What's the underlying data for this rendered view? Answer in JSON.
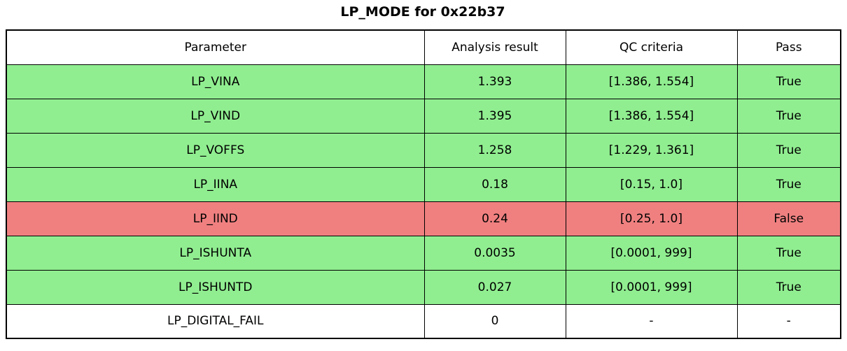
{
  "title": "LP_MODE for 0x22b37",
  "colors": {
    "pass": "#90EE90",
    "fail": "#F08080",
    "none": "#FFFFFF",
    "border": "#000000",
    "text": "#000000"
  },
  "table": {
    "columns": [
      "Parameter",
      "Analysis result",
      "QC criteria",
      "Pass"
    ],
    "rows": [
      {
        "parameter": "LP_VINA",
        "result": "1.393",
        "criteria": "[1.386, 1.554]",
        "pass": "True",
        "status": "pass"
      },
      {
        "parameter": "LP_VIND",
        "result": "1.395",
        "criteria": "[1.386, 1.554]",
        "pass": "True",
        "status": "pass"
      },
      {
        "parameter": "LP_VOFFS",
        "result": "1.258",
        "criteria": "[1.229, 1.361]",
        "pass": "True",
        "status": "pass"
      },
      {
        "parameter": "LP_IINA",
        "result": "0.18",
        "criteria": "[0.15, 1.0]",
        "pass": "True",
        "status": "pass"
      },
      {
        "parameter": "LP_IIND",
        "result": "0.24",
        "criteria": "[0.25, 1.0]",
        "pass": "False",
        "status": "fail"
      },
      {
        "parameter": "LP_ISHUNTA",
        "result": "0.0035",
        "criteria": "[0.0001, 999]",
        "pass": "True",
        "status": "pass"
      },
      {
        "parameter": "LP_ISHUNTD",
        "result": "0.027",
        "criteria": "[0.0001, 999]",
        "pass": "True",
        "status": "pass"
      },
      {
        "parameter": "LP_DIGITAL_FAIL",
        "result": "0",
        "criteria": "-",
        "pass": "-",
        "status": "none"
      }
    ]
  },
  "chart_data": {
    "type": "table",
    "title": "LP_MODE for 0x22b37",
    "columns": [
      "Parameter",
      "Analysis result",
      "QC criteria",
      "Pass"
    ],
    "rows": [
      [
        "LP_VINA",
        1.393,
        "[1.386, 1.554]",
        "True"
      ],
      [
        "LP_VIND",
        1.395,
        "[1.386, 1.554]",
        "True"
      ],
      [
        "LP_VOFFS",
        1.258,
        "[1.229, 1.361]",
        "True"
      ],
      [
        "LP_IINA",
        0.18,
        "[0.15, 1.0]",
        "True"
      ],
      [
        "LP_IIND",
        0.24,
        "[0.25, 1.0]",
        "False"
      ],
      [
        "LP_ISHUNTA",
        0.0035,
        "[0.0001, 999]",
        "True"
      ],
      [
        "LP_ISHUNTD",
        0.027,
        "[0.0001, 999]",
        "True"
      ],
      [
        "LP_DIGITAL_FAIL",
        0,
        "-",
        "-"
      ]
    ],
    "row_status": [
      "pass",
      "pass",
      "pass",
      "pass",
      "fail",
      "pass",
      "pass",
      "none"
    ],
    "layout_hints": {
      "header_background": "#FFFFFF",
      "pass_row_background": "#90EE90",
      "fail_row_background": "#F08080",
      "neutral_row_background": "#FFFFFF",
      "grid": true
    }
  }
}
